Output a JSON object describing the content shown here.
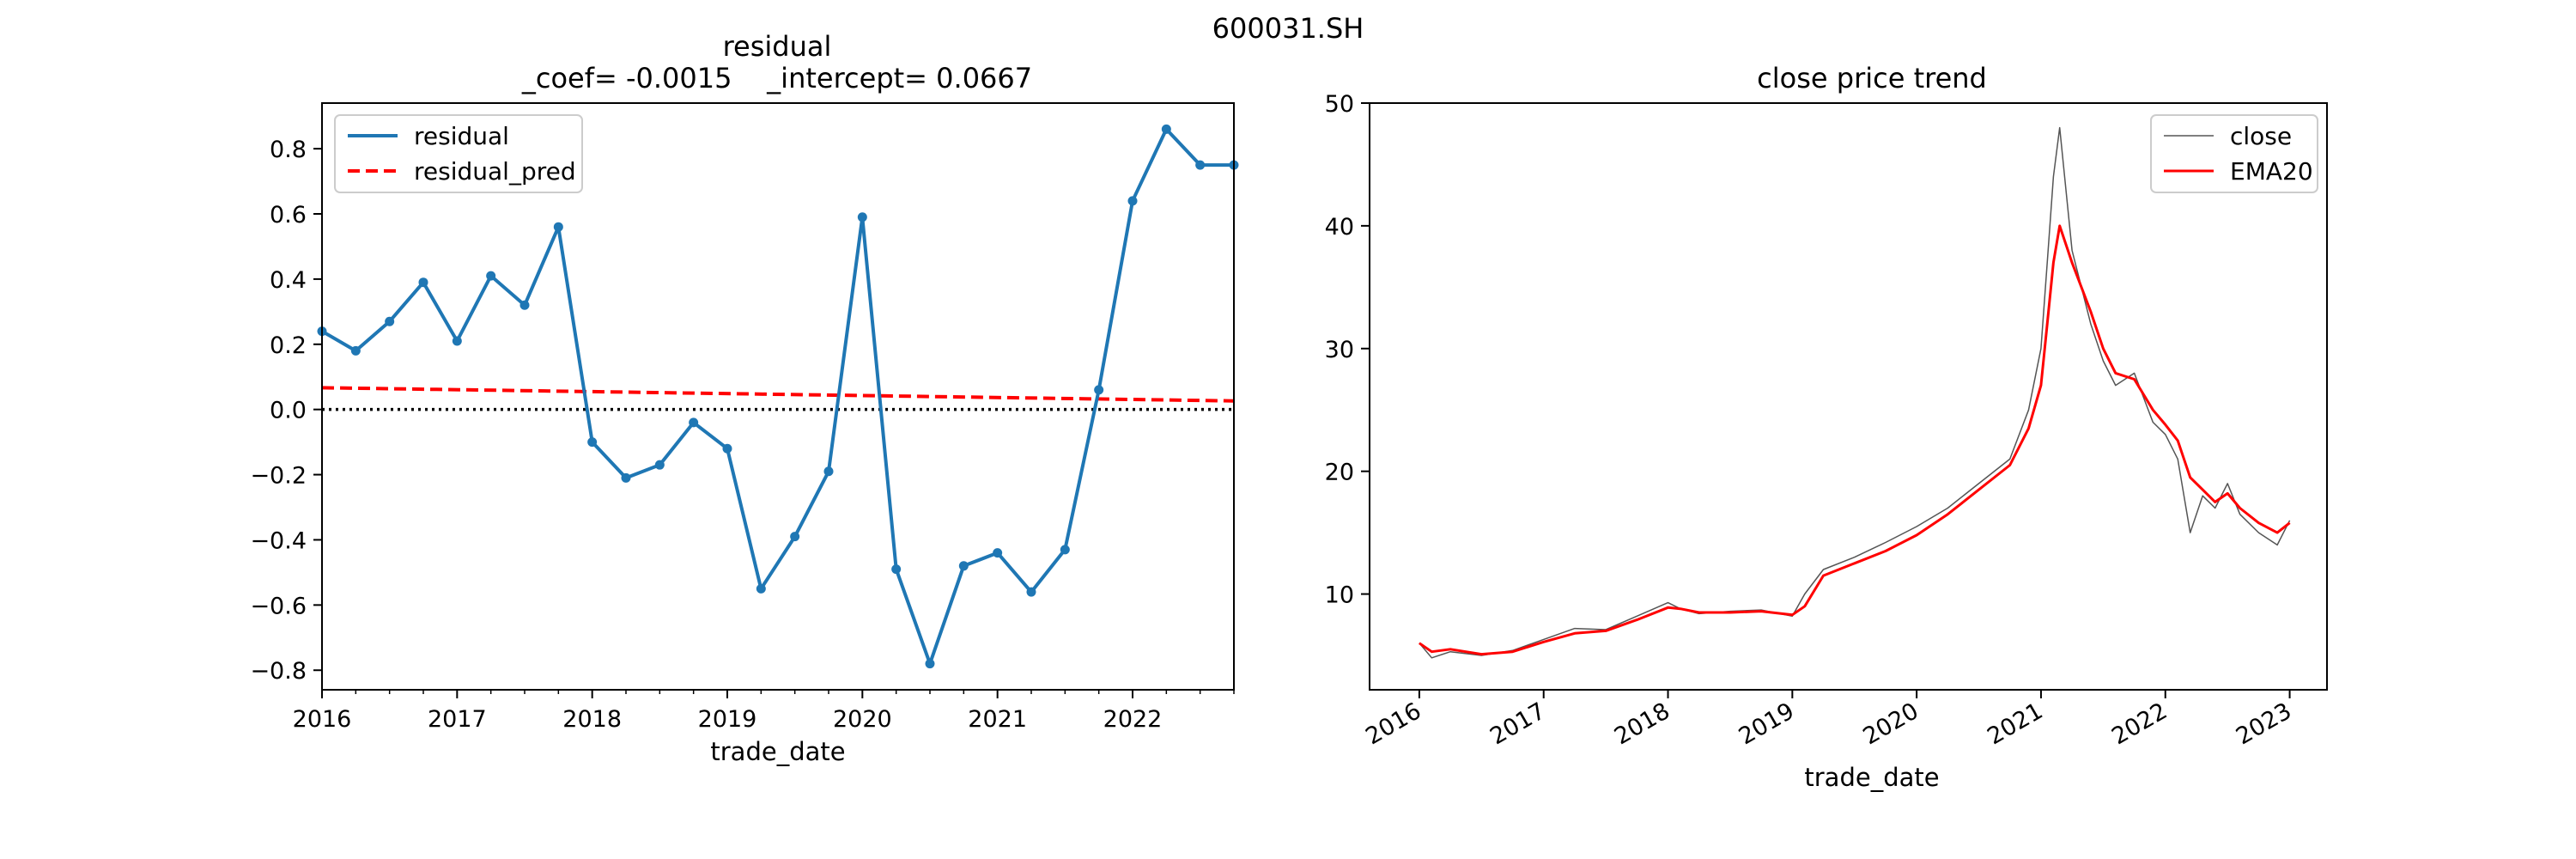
{
  "figure": {
    "suptitle": "600031.SH"
  },
  "chart_data": [
    {
      "type": "line",
      "title_line1": "residual",
      "title_line2": "_coef= -0.0015    _intercept= 0.0667",
      "xlabel": "trade_date",
      "ylabel": "",
      "xlim": [
        2016.0,
        2022.75
      ],
      "ylim": [
        -0.86,
        0.94
      ],
      "x_ticks": [
        2016,
        2017,
        2018,
        2019,
        2020,
        2021,
        2022
      ],
      "x_tick_labels": [
        "2016",
        "2017",
        "2018",
        "2019",
        "2020",
        "2021",
        "2022"
      ],
      "y_ticks": [
        -0.8,
        -0.6,
        -0.4,
        -0.2,
        0.0,
        0.2,
        0.4,
        0.6,
        0.8
      ],
      "y_tick_labels": [
        "−0.8",
        "−0.6",
        "−0.4",
        "−0.2",
        "0.0",
        "0.2",
        "0.4",
        "0.6",
        "0.8"
      ],
      "zero_line": true,
      "legend_position": "upper-left",
      "series": [
        {
          "name": "residual",
          "color": "#1f77b4",
          "style": "solid-with-markers",
          "x": [
            "2016-01",
            "2016-04",
            "2016-07",
            "2016-10",
            "2017-01",
            "2017-04",
            "2017-07",
            "2017-10",
            "2018-01",
            "2018-04",
            "2018-07",
            "2018-10",
            "2019-01",
            "2019-04",
            "2019-07",
            "2019-10",
            "2020-01",
            "2020-04",
            "2020-07",
            "2020-10",
            "2021-01",
            "2021-04",
            "2021-07",
            "2021-10",
            "2022-01",
            "2022-04",
            "2022-07",
            "2022-10"
          ],
          "values": [
            0.24,
            0.18,
            0.27,
            0.39,
            0.21,
            0.41,
            0.32,
            0.56,
            -0.1,
            -0.21,
            -0.17,
            -0.04,
            -0.12,
            -0.55,
            -0.39,
            -0.19,
            0.59,
            -0.49,
            -0.78,
            -0.48,
            -0.44,
            -0.56,
            -0.43,
            0.06,
            0.64,
            0.86,
            0.75,
            0.75
          ]
        },
        {
          "name": "residual_pred",
          "color": "#ff0000",
          "style": "dashed",
          "coef": -0.0015,
          "intercept": 0.0667
        }
      ]
    },
    {
      "type": "line",
      "title": "close price trend",
      "xlabel": "trade_date",
      "ylabel": "",
      "xlim": [
        2015.6,
        2023.3
      ],
      "ylim": [
        2.2,
        50.0
      ],
      "x_ticks": [
        2016,
        2017,
        2018,
        2019,
        2020,
        2021,
        2022,
        2023
      ],
      "x_tick_labels": [
        "2016",
        "2017",
        "2018",
        "2019",
        "2020",
        "2021",
        "2022",
        "2023"
      ],
      "y_ticks": [
        10,
        20,
        30,
        40,
        50
      ],
      "y_tick_labels": [
        "10",
        "20",
        "30",
        "40",
        "50"
      ],
      "legend_position": "upper-right",
      "series": [
        {
          "name": "close",
          "color": "#555555",
          "style": "thin",
          "x": [
            2016.0,
            2016.1,
            2016.25,
            2016.5,
            2016.75,
            2017.0,
            2017.25,
            2017.5,
            2017.75,
            2018.0,
            2018.1,
            2018.25,
            2018.5,
            2018.75,
            2019.0,
            2019.1,
            2019.25,
            2019.5,
            2019.75,
            2020.0,
            2020.25,
            2020.5,
            2020.75,
            2020.9,
            2021.0,
            2021.05,
            2021.1,
            2021.15,
            2021.25,
            2021.4,
            2021.5,
            2021.6,
            2021.75,
            2021.9,
            2022.0,
            2022.1,
            2022.2,
            2022.3,
            2022.4,
            2022.5,
            2022.6,
            2022.75,
            2022.9,
            2023.0
          ],
          "values": [
            6.0,
            4.8,
            5.3,
            5.0,
            5.4,
            6.3,
            7.2,
            7.1,
            8.2,
            9.3,
            8.8,
            8.4,
            8.6,
            8.7,
            8.2,
            10.0,
            12.0,
            13.0,
            14.2,
            15.5,
            17.0,
            19.0,
            21.0,
            25.0,
            30.0,
            37.0,
            44.0,
            48.0,
            38.0,
            32.0,
            29.0,
            27.0,
            28.0,
            24.0,
            23.0,
            21.0,
            15.0,
            18.0,
            17.0,
            19.0,
            16.5,
            15.0,
            14.0,
            16.0
          ]
        },
        {
          "name": "EMA20",
          "color": "#ff0000",
          "style": "solid",
          "x": [
            2016.0,
            2016.1,
            2016.25,
            2016.5,
            2016.75,
            2017.0,
            2017.25,
            2017.5,
            2017.75,
            2018.0,
            2018.1,
            2018.25,
            2018.5,
            2018.75,
            2019.0,
            2019.1,
            2019.25,
            2019.5,
            2019.75,
            2020.0,
            2020.25,
            2020.5,
            2020.75,
            2020.9,
            2021.0,
            2021.05,
            2021.1,
            2021.15,
            2021.25,
            2021.4,
            2021.5,
            2021.6,
            2021.75,
            2021.9,
            2022.0,
            2022.1,
            2022.2,
            2022.3,
            2022.4,
            2022.5,
            2022.6,
            2022.75,
            2022.9,
            2023.0
          ],
          "values": [
            6.0,
            5.3,
            5.5,
            5.1,
            5.3,
            6.1,
            6.8,
            7.0,
            7.9,
            8.9,
            8.8,
            8.5,
            8.5,
            8.6,
            8.3,
            9.0,
            11.5,
            12.5,
            13.5,
            14.8,
            16.5,
            18.5,
            20.5,
            23.5,
            27.0,
            32.0,
            37.0,
            40.0,
            37.0,
            33.0,
            30.0,
            28.0,
            27.5,
            25.0,
            23.8,
            22.5,
            19.5,
            18.5,
            17.5,
            18.2,
            17.0,
            15.8,
            15.0,
            15.8
          ]
        }
      ]
    }
  ]
}
